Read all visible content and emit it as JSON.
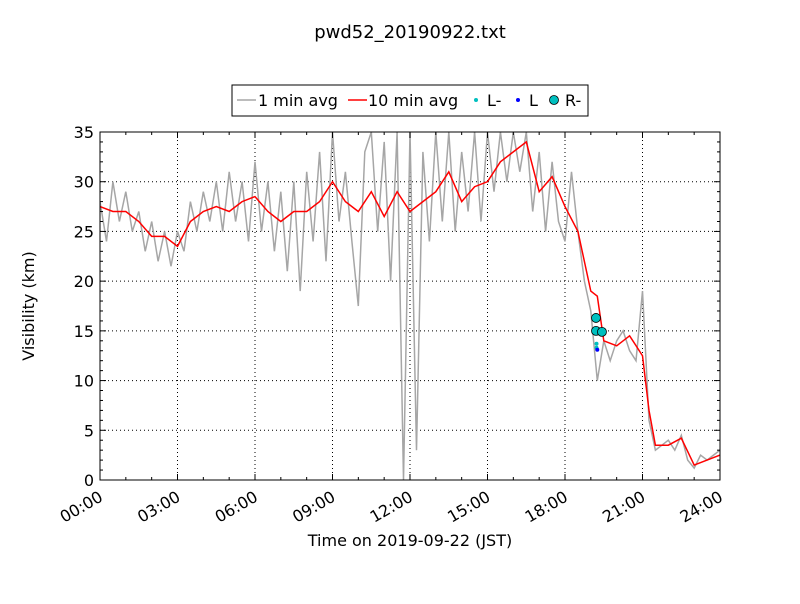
{
  "chart_data": {
    "type": "line",
    "title": "pwd52_20190922.txt",
    "xlabel": "Time on 2019-09-22 (JST)",
    "ylabel": "Visibility (km)",
    "xlim": [
      0,
      24
    ],
    "ylim": [
      0,
      35
    ],
    "grid": true,
    "legend_position": "top-center",
    "x_ticks": [
      0,
      3,
      6,
      9,
      12,
      15,
      18,
      21,
      24
    ],
    "x_tick_labels": [
      "00:00",
      "03:00",
      "06:00",
      "09:00",
      "12:00",
      "15:00",
      "18:00",
      "21:00",
      "24:00"
    ],
    "y_ticks": [
      0,
      5,
      10,
      15,
      20,
      25,
      30,
      35
    ],
    "y_tick_labels": [
      "0",
      "5",
      "10",
      "15",
      "20",
      "25",
      "30",
      "35"
    ],
    "series": [
      {
        "name": "1 min avg",
        "color": "#a6a6a6",
        "x_step_hours": 0.25,
        "values": [
          28,
          24,
          30,
          26,
          29,
          25,
          27,
          23,
          26,
          22,
          25,
          21.5,
          25,
          23,
          28,
          25,
          29,
          26,
          30,
          25,
          31,
          26,
          30,
          24,
          32,
          25,
          30,
          23,
          29,
          21,
          30,
          19,
          31,
          24,
          33,
          22,
          35,
          26,
          31,
          24,
          17.5,
          33,
          35,
          25,
          34,
          20,
          35,
          0,
          35,
          3,
          33,
          24,
          35,
          26,
          35,
          25,
          33,
          27,
          35,
          26,
          35,
          29,
          35,
          30,
          35,
          31,
          35,
          27,
          33,
          25,
          32,
          26,
          24,
          31,
          25,
          20,
          17,
          10,
          14,
          12,
          14,
          15,
          13,
          12,
          19,
          6,
          3,
          3.5,
          4,
          3,
          4.5,
          2,
          1.2,
          2.5,
          2,
          2.5,
          3
        ]
      },
      {
        "name": "10 min avg",
        "color": "#ff0000",
        "x": [
          0,
          0.5,
          1,
          1.5,
          2,
          2.5,
          3,
          3.5,
          4,
          4.5,
          5,
          5.5,
          6,
          6.5,
          7,
          7.5,
          8,
          8.5,
          9,
          9.5,
          10,
          10.5,
          11,
          11.5,
          12,
          12.5,
          13,
          13.5,
          14,
          14.5,
          15,
          15.5,
          16,
          16.5,
          17,
          17.5,
          18,
          18.5,
          19,
          19.25,
          19.5,
          20,
          20.5,
          21,
          21.25,
          21.5,
          22,
          22.5,
          23,
          23.5,
          24
        ],
        "values": [
          27.5,
          27,
          27,
          26,
          24.5,
          24.5,
          23.5,
          26,
          27,
          27.5,
          27,
          28,
          28.5,
          27,
          26,
          27,
          27,
          28,
          30,
          28,
          27,
          29,
          26.5,
          29,
          27,
          28,
          29,
          31,
          28,
          29.5,
          30,
          32,
          33,
          34,
          29,
          30.5,
          27.5,
          25,
          19,
          18.5,
          14,
          13.5,
          14.5,
          12.5,
          7,
          3.5,
          3.5,
          4.2,
          1.5,
          2,
          2.5
        ]
      },
      {
        "name": "L-",
        "color": "#00bfbf",
        "marker": "small-dot",
        "x": [
          19.22,
          19.22
        ],
        "values": [
          13.7,
          13.3
        ]
      },
      {
        "name": "L",
        "color": "#0000ff",
        "marker": "small-dot",
        "x": [
          19.25
        ],
        "values": [
          13.1
        ]
      },
      {
        "name": "R-",
        "color": "#00bfbf",
        "marker": "large-circle",
        "x": [
          19.2,
          19.2,
          19.43
        ],
        "values": [
          16.3,
          15.0,
          14.9
        ]
      }
    ]
  }
}
